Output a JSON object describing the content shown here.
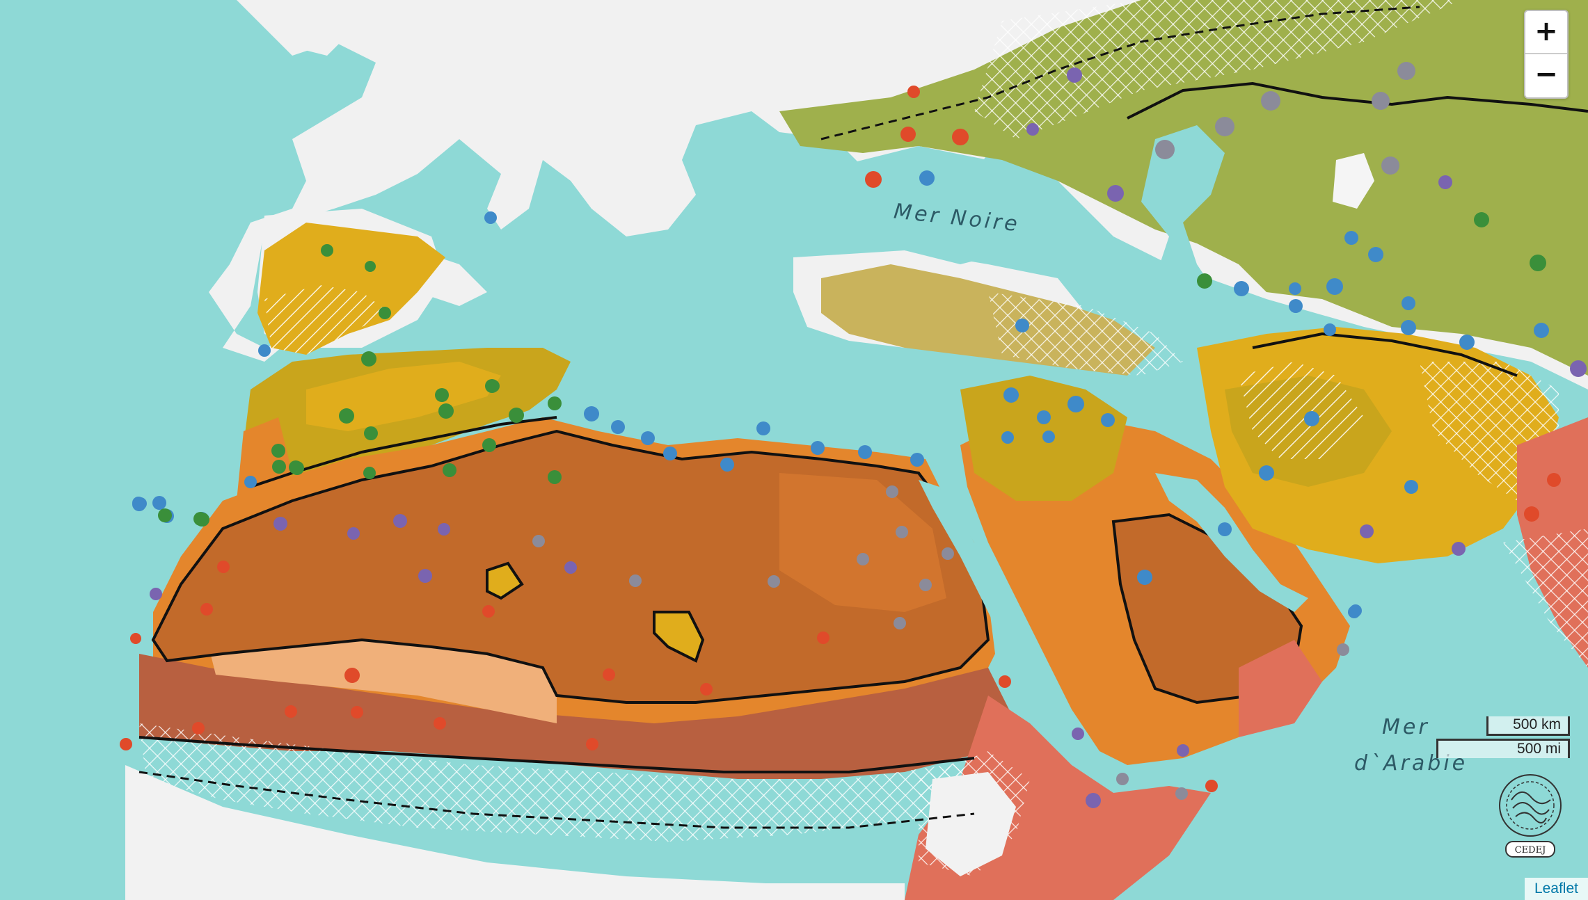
{
  "map": {
    "sea_labels": {
      "black_sea": "Mer Noire",
      "arabian_sea_line1": "Mer",
      "arabian_sea_line2": "d`Arabie"
    },
    "colors": {
      "sea": "#8ed9d6",
      "land_relief": "#f2f2f2",
      "hyperarid_core": "#c26a2a",
      "arid_orange": "#e4862c",
      "semi_arid_yellow": "#e0ad1c",
      "mediterranean_olive": "#c9a51c",
      "steppe_green": "#9fb04c",
      "sahel_red": "#b86040",
      "light_peach": "#f0b07a",
      "point_blue": "#3f8ac9",
      "point_green": "#3a8f3a",
      "point_red": "#e04a2a",
      "point_purple": "#7a64b0",
      "point_grey": "#8b8b9a"
    }
  },
  "zoom": {
    "in_label": "+",
    "out_label": "−"
  },
  "scale": {
    "km_label": "500 km",
    "mi_label": "500 mi"
  },
  "logo": {
    "name": "CEDEJ"
  },
  "attribution": {
    "text": "Leaflet"
  }
}
